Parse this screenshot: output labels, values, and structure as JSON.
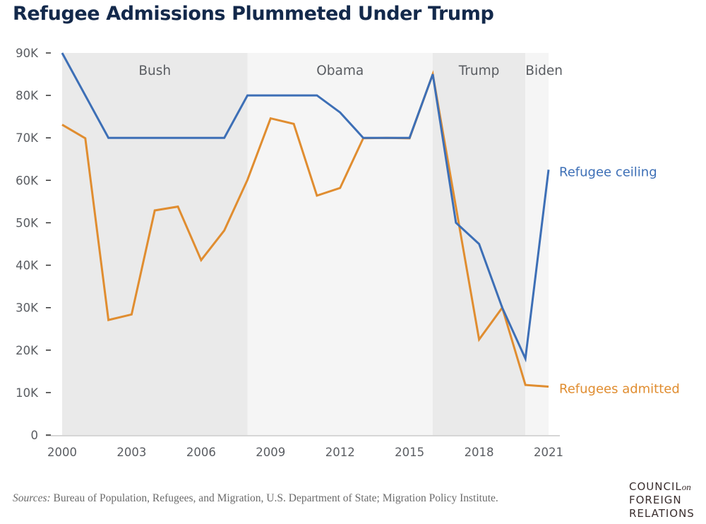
{
  "header": {
    "title": "Refugee Admissions Plummeted Under Trump"
  },
  "footer": {
    "source_prefix": "Sources:",
    "source_text": " Bureau of Population, Refugees, and Migration, U.S. Department of State; Migration Policy Institute.",
    "logo_line1": "COUNCIL",
    "logo_on": "on",
    "logo_line2": "FOREIGN",
    "logo_line3": "RELATIONS"
  },
  "chart_data": {
    "type": "line",
    "title": "Refugee Admissions Plummeted Under Trump",
    "xlabel": "",
    "ylabel": "",
    "x": [
      2000,
      2001,
      2002,
      2003,
      2004,
      2005,
      2006,
      2007,
      2008,
      2009,
      2010,
      2011,
      2012,
      2013,
      2014,
      2015,
      2016,
      2017,
      2018,
      2019,
      2020,
      2021
    ],
    "xlim": [
      2000,
      2021
    ],
    "ylim": [
      0,
      90000
    ],
    "xticks": [
      2000,
      2003,
      2006,
      2009,
      2012,
      2015,
      2018,
      2021
    ],
    "xtick_labels": [
      "2000",
      "2003",
      "2006",
      "2009",
      "2012",
      "2015",
      "2018",
      "2021"
    ],
    "yticks": [
      0,
      10000,
      20000,
      30000,
      40000,
      50000,
      60000,
      70000,
      80000,
      90000
    ],
    "ytick_labels": [
      "0",
      "10K",
      "20K",
      "30K",
      "40K",
      "50K",
      "60K",
      "70K",
      "80K",
      "90K"
    ],
    "grid": false,
    "legend": "direct labels at right end of lines",
    "series": [
      {
        "name": "Refugee ceiling",
        "color": "#3d6fb6",
        "values": [
          90000,
          80000,
          70000,
          70000,
          70000,
          70000,
          70000,
          70000,
          80000,
          80000,
          80000,
          80000,
          76000,
          70000,
          70000,
          70000,
          85000,
          50000,
          45000,
          30000,
          18000,
          62500
        ]
      },
      {
        "name": "Refugees admitted",
        "color": "#e08d30",
        "values": [
          73100,
          69900,
          27100,
          28400,
          52900,
          53800,
          41200,
          48200,
          60100,
          74600,
          73300,
          56400,
          58200,
          69900,
          70000,
          69900,
          85000,
          53700,
          22500,
          30000,
          11800,
          11400
        ]
      }
    ],
    "annotations": [
      {
        "label": "Bush",
        "start": 2000,
        "end": 2008,
        "fill": "#eaeaea"
      },
      {
        "label": "Obama",
        "start": 2008,
        "end": 2016,
        "fill": "#f5f5f5"
      },
      {
        "label": "Trump",
        "start": 2016,
        "end": 2020,
        "fill": "#eaeaea"
      },
      {
        "label": "Biden",
        "start": 2020,
        "end": 2021,
        "fill": "#f5f5f5"
      }
    ]
  }
}
